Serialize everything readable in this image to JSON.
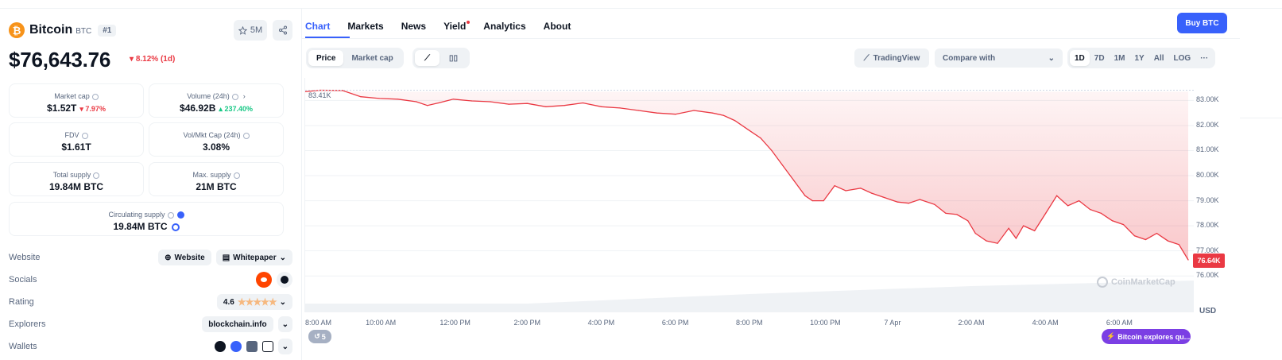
{
  "coin": {
    "name": "Bitcoin",
    "symbol": "BTC",
    "rank": "#1",
    "logo_glyph": "₿",
    "watchlist_count": "5M"
  },
  "price": {
    "value": "$76,643.76",
    "change": "8.12% (1d)",
    "direction": "down"
  },
  "stats": {
    "market_cap": {
      "label": "Market cap",
      "value": "$1.52T",
      "delta": "7.97%"
    },
    "volume": {
      "label": "Volume (24h)",
      "value": "$46.92B",
      "delta": "237.40%"
    },
    "fdv": {
      "label": "FDV",
      "value": "$1.61T"
    },
    "vol_mkt_cap": {
      "label": "Vol/Mkt Cap (24h)",
      "value": "3.08%"
    },
    "total_supply": {
      "label": "Total supply",
      "value": "19.84M BTC"
    },
    "max_supply": {
      "label": "Max. supply",
      "value": "21M BTC"
    },
    "circulating_supply": {
      "label": "Circulating supply",
      "value": "19.84M BTC"
    }
  },
  "links": {
    "website_label": "Website",
    "website_chip": "Website",
    "whitepaper_chip": "Whitepaper",
    "socials_label": "Socials",
    "rating_label": "Rating",
    "rating_value": "4.6",
    "rating_stars": 4.6,
    "explorers_label": "Explorers",
    "explorer_chip": "blockchain.info",
    "wallets_label": "Wallets"
  },
  "tabs": [
    "Chart",
    "Markets",
    "News",
    "Yield",
    "Analytics",
    "About"
  ],
  "buy_button": "Buy BTC",
  "chart_controls": {
    "price_toggle": "Price",
    "marketcap_toggle": "Market cap",
    "tradingview": "TradingView",
    "compare_placeholder": "Compare with",
    "ranges": [
      "1D",
      "7D",
      "1M",
      "1Y",
      "All",
      "LOG"
    ],
    "more": "···"
  },
  "chart_overlay": {
    "high_label": "83.41K",
    "current_label": "76.64K",
    "currency": "USD",
    "watermark": "CoinMarketCap",
    "news_count": "5",
    "explore_pill": "Bitcoin explores qu..."
  },
  "colors": {
    "accent": "#3861fb",
    "down": "#ea3943",
    "up": "#16c784",
    "bitcoin": "#f7931a"
  },
  "chart_data": {
    "type": "line",
    "ylim": [
      75500,
      83900
    ],
    "y_ticks": [
      "83.00K",
      "82.00K",
      "81.00K",
      "80.00K",
      "79.00K",
      "78.00K",
      "77.00K",
      "76.00K"
    ],
    "x_ticks": [
      "8:00 AM",
      "10:00 AM",
      "12:00 PM",
      "2:00 PM",
      "4:00 PM",
      "6:00 PM",
      "8:00 PM",
      "10:00 PM",
      "7 Apr",
      "2:00 AM",
      "4:00 AM",
      "6:00 AM"
    ],
    "x_hours": [
      0,
      2,
      4,
      6,
      8,
      10,
      12,
      14,
      16,
      18,
      20,
      22
    ],
    "series": [
      {
        "x": [
          0,
          0.4,
          1,
          1.5,
          2,
          2.5,
          3,
          3.3,
          3.6,
          4,
          4.5,
          5,
          5.5,
          6,
          6.5,
          7,
          7.5,
          8,
          8.5,
          9,
          9.5,
          10,
          10.5,
          11,
          11.3,
          11.6,
          12,
          12.3,
          12.6,
          12.9,
          13.2,
          13.5,
          13.7,
          14,
          14.3,
          14.6,
          15,
          15.3,
          15.6,
          16,
          16.3,
          16.6,
          17,
          17.3,
          17.6,
          17.9,
          18.1,
          18.4,
          18.7,
          19,
          19.2,
          19.4,
          19.7,
          20,
          20.3,
          20.6,
          20.9,
          21.2,
          21.5,
          21.8,
          22.1,
          22.4,
          22.7,
          23,
          23.3,
          23.6,
          23.85
        ],
        "y": [
          83350,
          83410,
          83400,
          83150,
          83080,
          83050,
          82950,
          82800,
          82900,
          83050,
          82980,
          82950,
          82850,
          82880,
          82750,
          82800,
          82900,
          82750,
          82700,
          82600,
          82500,
          82450,
          82600,
          82500,
          82400,
          82200,
          81800,
          81500,
          81000,
          80400,
          79800,
          79200,
          79000,
          79000,
          79600,
          79400,
          79500,
          79300,
          79150,
          78950,
          78900,
          79050,
          78850,
          78500,
          78450,
          78200,
          77700,
          77400,
          77300,
          77900,
          77500,
          78000,
          77800,
          78500,
          79200,
          78800,
          79000,
          78650,
          78500,
          78200,
          78050,
          77600,
          77450,
          77700,
          77400,
          77250,
          76640
        ]
      }
    ]
  }
}
